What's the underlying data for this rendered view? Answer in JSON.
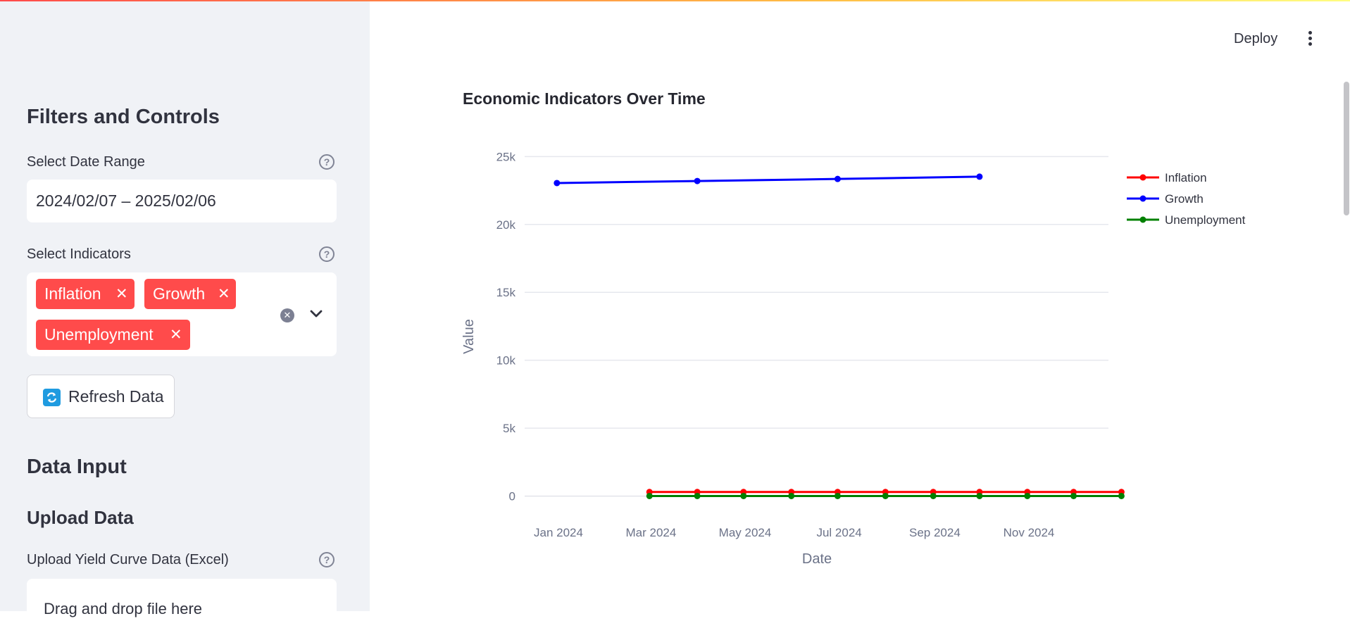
{
  "header": {
    "deploy_label": "Deploy",
    "menu_icon": "kebab-menu-icon"
  },
  "sidebar": {
    "title": "Filters and Controls",
    "date_range": {
      "label": "Select Date Range",
      "value": "2024/02/07 – 2025/02/06"
    },
    "indicators": {
      "label": "Select Indicators",
      "selected": [
        "Inflation",
        "Growth",
        "Unemployment"
      ],
      "chip_color": "#ff4b4b"
    },
    "refresh_label": "Refresh Data",
    "data_input_title": "Data Input",
    "upload_title": "Upload Data",
    "upload_label": "Upload Yield Curve Data (Excel)",
    "dropzone_text": "Drag and drop file here"
  },
  "main": {
    "chart_title": "Economic Indicators Over Time"
  },
  "chart_data": {
    "type": "line",
    "title": "Economic Indicators Over Time",
    "xlabel": "Date",
    "ylabel": "Value",
    "ylim": [
      -800,
      25900
    ],
    "y_ticks": [
      0,
      5000,
      10000,
      15000,
      20000,
      25000
    ],
    "y_tick_labels": [
      "0",
      "5k",
      "10k",
      "15k",
      "20k",
      "25k"
    ],
    "x_ticks": [
      "2024-01-01",
      "2024-03-01",
      "2024-05-01",
      "2024-07-01",
      "2024-09-01",
      "2024-11-01"
    ],
    "x_tick_labels": [
      "Jan 2024",
      "Mar 2024",
      "May 2024",
      "Jul 2024",
      "Sep 2024",
      "Nov 2024"
    ],
    "grid": true,
    "legend": "top-right",
    "series": [
      {
        "name": "Inflation",
        "color": "#ff0000",
        "x": [
          "2024-02-29",
          "2024-03-31",
          "2024-04-30",
          "2024-05-31",
          "2024-06-30",
          "2024-07-31",
          "2024-08-31",
          "2024-09-30",
          "2024-10-31",
          "2024-11-30",
          "2024-12-31"
        ],
        "y": [
          300,
          300,
          300,
          300,
          300,
          300,
          300,
          300,
          300,
          300,
          300
        ]
      },
      {
        "name": "Growth",
        "color": "#0000ff",
        "x": [
          "2023-12-31",
          "2024-03-31",
          "2024-06-30",
          "2024-09-30"
        ],
        "y": [
          23050,
          23200,
          23350,
          23520
        ]
      },
      {
        "name": "Unemployment",
        "color": "#008000",
        "x": [
          "2024-02-29",
          "2024-03-31",
          "2024-04-30",
          "2024-05-31",
          "2024-06-30",
          "2024-07-31",
          "2024-08-31",
          "2024-09-30",
          "2024-10-31",
          "2024-11-30",
          "2024-12-31"
        ],
        "y": [
          4,
          4,
          4,
          4,
          4,
          4,
          4,
          4,
          4,
          4,
          4
        ]
      }
    ]
  }
}
